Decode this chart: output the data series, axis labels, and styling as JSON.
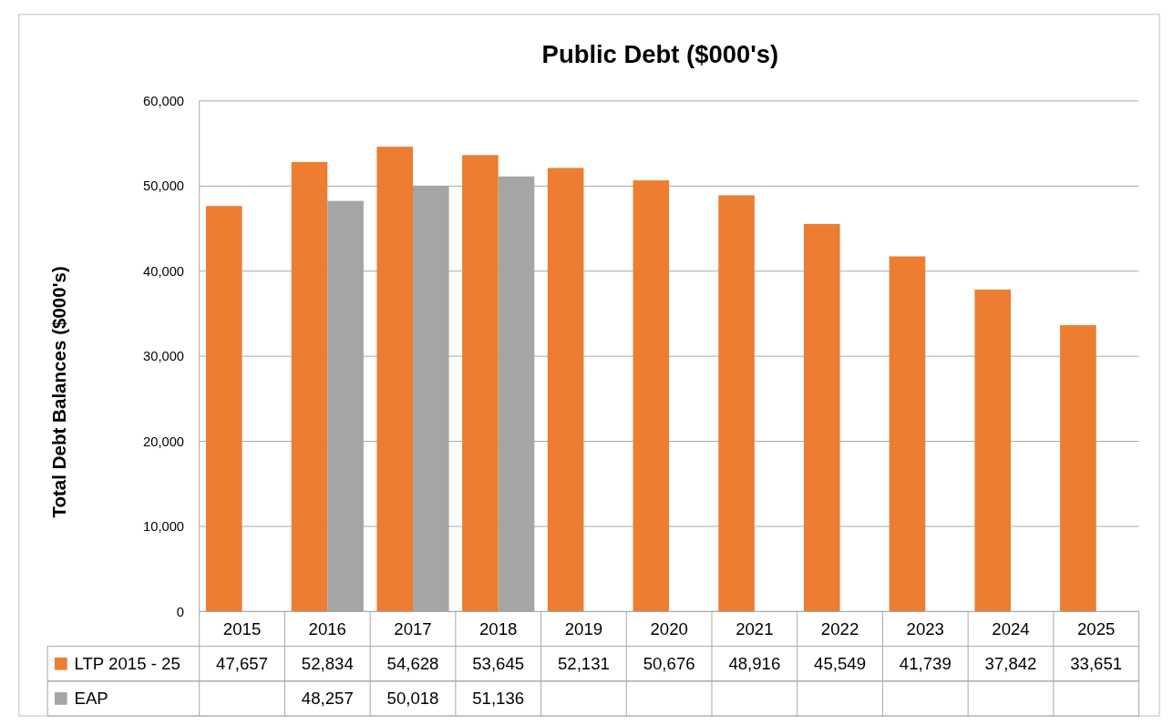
{
  "chart_data": {
    "type": "bar",
    "title": "Public Debt ($000's)",
    "ylabel": "Total Debt Balances ($000's)",
    "categories": [
      "2015",
      "2016",
      "2017",
      "2018",
      "2019",
      "2020",
      "2021",
      "2022",
      "2023",
      "2024",
      "2025"
    ],
    "series": [
      {
        "name": "LTP 2015 - 25",
        "color": "#ed7d31",
        "values": [
          47657,
          52834,
          54628,
          53645,
          52131,
          50676,
          48916,
          45549,
          41739,
          37842,
          33651
        ],
        "value_labels": [
          "47,657",
          "52,834",
          "54,628",
          "53,645",
          "52,131",
          "50,676",
          "48,916",
          "45,549",
          "41,739",
          "37,842",
          "33,651"
        ]
      },
      {
        "name": "EAP",
        "color": "#a5a5a5",
        "values": [
          null,
          48257,
          50018,
          51136,
          null,
          null,
          null,
          null,
          null,
          null,
          null
        ],
        "value_labels": [
          null,
          "48,257",
          "50,018",
          "51,136",
          null,
          null,
          null,
          null,
          null,
          null,
          null
        ]
      }
    ],
    "ylim": [
      0,
      60000
    ],
    "yticks": [
      0,
      {
        "value": 10000,
        "label": "10,000"
      },
      {
        "value": 20000,
        "label": "20,000"
      },
      {
        "value": 30000,
        "label": "30,000"
      },
      {
        "value": 40000,
        "label": "40,000"
      },
      {
        "value": 50000,
        "label": "50,000"
      },
      {
        "value": 60000,
        "label": "60,000"
      }
    ],
    "grid": "y",
    "legend": "bottom"
  }
}
